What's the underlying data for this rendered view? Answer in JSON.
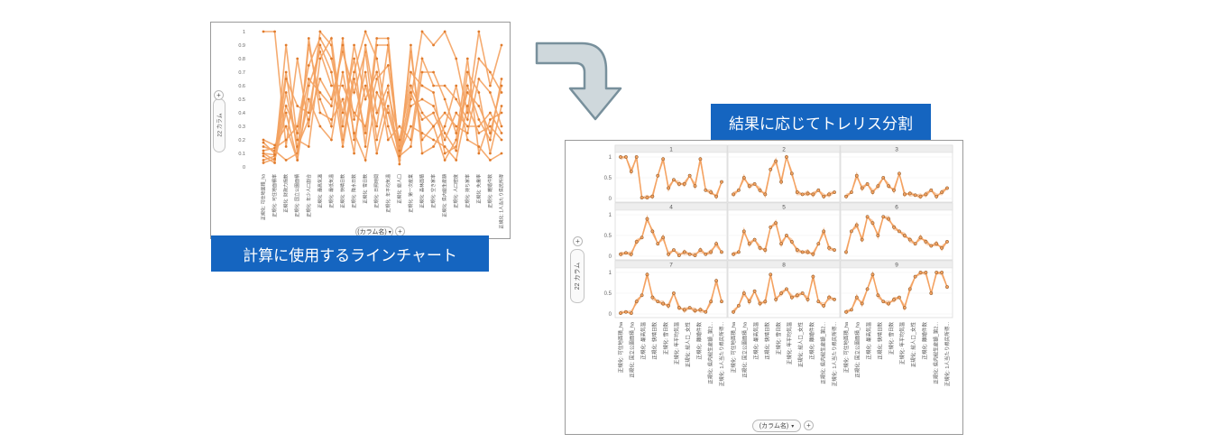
{
  "left_chart": {
    "caption": "計算に使用するラインチャート",
    "y_ticks": [
      "1",
      "0.9",
      "0.8",
      "0.7",
      "0.6",
      "0.5",
      "0.4",
      "0.3",
      "0.2",
      "0.1",
      "0"
    ],
    "column_selector": "22 カラム",
    "x_selector": "(カラム名)",
    "x_labels": [
      "正規化: 可住地面積_ha",
      "正規化: 可住地面積率",
      "正規化: 財政力指数",
      "正規化: 国立公園面積",
      "正規化: 年少人口割合",
      "正規化: 最高気温",
      "正規化: 最低気温",
      "正規化: 快晴日数",
      "正規化: 降水日数",
      "正規化: 雪日数",
      "正規化: 日照時間",
      "正規化: 年平均気温",
      "正規化: 総人口",
      "正規化: 第一次産業",
      "正規化: 森林面積",
      "正規化: 空き家率",
      "正規化: 県内総生産額",
      "正規化: 人口密度",
      "正規化: 持ち家率",
      "正規化: 失業率",
      "正規化: 離婚件数",
      "正規化: 1人当たり県民所得"
    ]
  },
  "right_chart": {
    "caption": "結果に応じてトレリス分割",
    "column_selector": "22 カラム",
    "x_selector": "(カラム名)",
    "y_ticks": [
      "1",
      "0.5",
      "0"
    ],
    "panels": [
      "1",
      "2",
      "3",
      "4",
      "5",
      "6",
      "7",
      "8",
      "9"
    ],
    "x_labels": [
      "正規化: 可住地面積_ha",
      "正規化: 国立公園面積_ha",
      "正規化: 最高気温",
      "正規化: 快晴日数",
      "正規化: 雪日数",
      "正規化: 年平均気温",
      "正規化: 総人口_女性",
      "正規化: 離婚件数",
      "正規化: 県内総生産額_第2...",
      "正規化: 1人当たり県民所得..."
    ]
  },
  "colors": {
    "line": "#f4a261",
    "line_dark": "#e07b2c",
    "marker_edge": "#7a4a1c",
    "label_bg": "#1565c0",
    "arrow_fill": "#cfd8dc",
    "arrow_stroke": "#78909c"
  },
  "chart_data": [
    {
      "type": "line",
      "title": "",
      "ylim": [
        0,
        1
      ],
      "grid": false,
      "note_series": "parallel-coordinate style; 47 overlapping series, drawn semi-transparent",
      "categories": [
        "正規化: 可住地面積_ha",
        "正規化: 可住地面積率",
        "正規化: 財政力指数",
        "正規化: 国立公園面積",
        "正規化: 年少人口割合",
        "正規化: 最高気温",
        "正規化: 最低気温",
        "正規化: 快晴日数",
        "正規化: 降水日数",
        "正規化: 雪日数",
        "正規化: 日照時間",
        "正規化: 年平均気温",
        "正規化: 総人口",
        "正規化: 第一次産業",
        "正規化: 森林面積",
        "正規化: 空き家率",
        "正規化: 県内総生産額",
        "正規化: 人口密度",
        "正規化: 持ち家率",
        "正規化: 失業率",
        "正規化: 離婚件数",
        "正規化: 1人当たり県民所得"
      ],
      "series": [
        {
          "values": [
            1,
            1,
            0.15,
            0.8,
            0.3,
            1,
            0.9,
            0.2,
            0.7,
            1,
            0.8,
            0.3,
            0.05,
            0.5,
            1,
            0.9,
            1,
            0.8,
            0.4,
            1,
            0.6,
            0.9
          ]
        },
        {
          "values": [
            0.18,
            0.1,
            0.7,
            0.1,
            0.9,
            0.5,
            0.3,
            0.95,
            0.2,
            0.6,
            0.3,
            0.9,
            0.1,
            0.85,
            0.2,
            0.3,
            0.05,
            0.2,
            0.8,
            0.1,
            0.35,
            0.4
          ]
        },
        {
          "values": [
            0.1,
            0.05,
            0.4,
            0.05,
            0.6,
            0.85,
            0.6,
            0.6,
            0.4,
            0.3,
            0.65,
            0.75,
            0.15,
            0.7,
            0.6,
            0.55,
            0.1,
            0.15,
            0.6,
            0.35,
            0.2,
            0.65
          ]
        },
        {
          "values": [
            0.12,
            0.14,
            0.2,
            0.3,
            0.75,
            0.95,
            0.8,
            0.4,
            0.8,
            0.15,
            0.9,
            0.9,
            0.05,
            0.45,
            0.5,
            0.45,
            0.25,
            0.12,
            0.7,
            0.55,
            0.1,
            0.45
          ]
        },
        {
          "values": [
            0.05,
            0.08,
            0.55,
            0.15,
            0.35,
            0.65,
            0.5,
            0.85,
            0.55,
            0.85,
            0.2,
            0.55,
            0.2,
            0.6,
            0.4,
            0.3,
            0.4,
            0.3,
            0.25,
            0.65,
            0.55,
            0.3
          ]
        },
        {
          "values": [
            0.15,
            0.12,
            0.05,
            0.1,
            0.5,
            0.3,
            0.2,
            0.7,
            0.25,
            0.05,
            0.55,
            0.4,
            0.1,
            0.3,
            0.25,
            0.2,
            0.15,
            0.05,
            0.45,
            0.25,
            0.3,
            0.2
          ]
        },
        {
          "values": [
            0.08,
            0.03,
            0.9,
            0.2,
            0.15,
            0.8,
            0.95,
            0.3,
            0.9,
            0.5,
            0.7,
            0.2,
            0.3,
            0.2,
            0.8,
            0.6,
            0.6,
            0.5,
            0.35,
            0.8,
            0.7,
            0.55
          ]
        },
        {
          "values": [
            0.2,
            0.16,
            0.3,
            0.05,
            0.95,
            0.4,
            0.35,
            0.5,
            0.1,
            0.9,
            0.4,
            0.6,
            0.02,
            0.9,
            0.1,
            0.15,
            0.3,
            0.6,
            0.2,
            0.15,
            0.05,
            0.1
          ]
        },
        {
          "values": [
            0.03,
            0.06,
            0.65,
            0.45,
            0.4,
            0.9,
            0.7,
            0.15,
            0.65,
            0.25,
            0.95,
            0.95,
            0.08,
            0.15,
            0.7,
            0.7,
            0.5,
            0.25,
            0.55,
            0.45,
            0.25,
            0.6
          ]
        },
        {
          "values": [
            0.1,
            0.09,
            0.45,
            0.25,
            0.65,
            0.55,
            0.45,
            0.9,
            0.35,
            0.7,
            0.1,
            0.45,
            0.12,
            0.55,
            0.35,
            0.4,
            0.2,
            0.4,
            0.3,
            0.3,
            0.4,
            0.25
          ]
        }
      ]
    },
    {
      "type": "line",
      "title": "",
      "ylim": [
        0,
        1
      ],
      "grid": true,
      "note_series": "trellis 3x3 by cluster; representative series per panel",
      "panels": [
        {
          "name": "1",
          "values": [
            1,
            1,
            0.65,
            1,
            0.02,
            0.02,
            0.05,
            0.55,
            0.95,
            0.25,
            0.45,
            0.35,
            0.35,
            0.55,
            0.3,
            0.95,
            0.2,
            0.15,
            0.05,
            0.4
          ]
        },
        {
          "name": "2",
          "values": [
            0.1,
            0.2,
            0.5,
            0.3,
            0.35,
            0.2,
            0.1,
            0.7,
            0.9,
            0.4,
            1,
            0.6,
            0.15,
            0.1,
            0.12,
            0.1,
            0.2,
            0.05,
            0.1,
            0.15
          ]
        },
        {
          "name": "3",
          "values": [
            0.05,
            0.15,
            0.55,
            0.25,
            0.35,
            0.15,
            0.3,
            0.5,
            0.3,
            0.2,
            0.6,
            0.1,
            0.12,
            0.08,
            0.05,
            0.1,
            0.2,
            0.05,
            0.15,
            0.25
          ]
        },
        {
          "name": "4",
          "values": [
            0.05,
            0.08,
            0.05,
            0.35,
            0.45,
            0.9,
            0.6,
            0.3,
            0.45,
            0.05,
            0.15,
            0.02,
            0.1,
            0.05,
            0.02,
            0.15,
            0.05,
            0.1,
            0.3,
            0.1
          ]
        },
        {
          "name": "5",
          "values": [
            0.05,
            0.1,
            0.6,
            0.3,
            0.4,
            0.2,
            0.15,
            0.7,
            0.8,
            0.3,
            0.5,
            0.35,
            0.15,
            0.1,
            0.1,
            0.05,
            0.3,
            0.6,
            0.2,
            0.15
          ]
        },
        {
          "name": "6",
          "values": [
            0.1,
            0.6,
            0.75,
            0.4,
            0.95,
            0.8,
            0.5,
            0.95,
            0.9,
            0.7,
            0.6,
            0.5,
            0.4,
            0.3,
            0.45,
            0.35,
            0.25,
            0.3,
            0.2,
            0.35
          ]
        },
        {
          "name": "7",
          "values": [
            0.02,
            0.05,
            0.02,
            0.3,
            0.45,
            0.95,
            0.4,
            0.3,
            0.25,
            0.2,
            0.5,
            0.15,
            0.1,
            0.15,
            0.08,
            0.1,
            0.05,
            0.3,
            0.8,
            0.3
          ]
        },
        {
          "name": "8",
          "values": [
            0.05,
            0.2,
            0.5,
            0.3,
            0.55,
            0.25,
            0.3,
            0.95,
            0.35,
            0.5,
            0.6,
            0.4,
            0.45,
            0.5,
            0.35,
            0.9,
            0.3,
            0.2,
            0.4,
            0.35
          ]
        },
        {
          "name": "9",
          "values": [
            0.05,
            0.1,
            0.4,
            0.25,
            0.6,
            0.95,
            0.45,
            0.3,
            0.25,
            0.35,
            0.4,
            0.15,
            0.6,
            0.9,
            1,
            1,
            0.5,
            1,
            1,
            0.65
          ]
        }
      ]
    }
  ]
}
